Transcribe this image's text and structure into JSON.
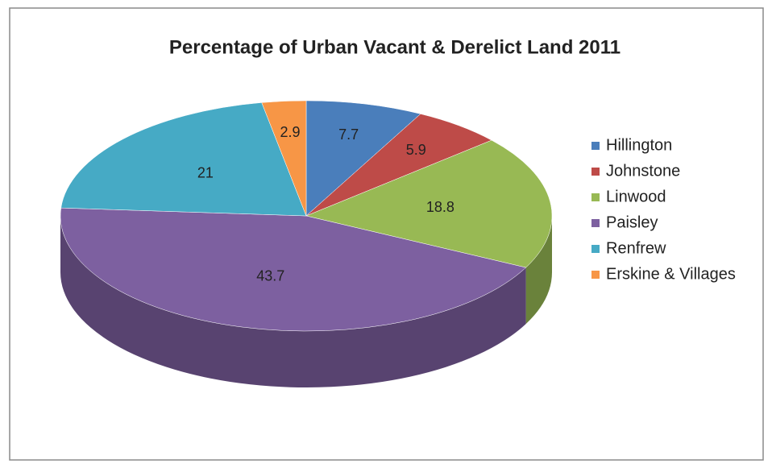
{
  "chart_data": {
    "type": "pie",
    "title": "Percentage of Urban Vacant & Derelict Land 2011",
    "categories": [
      "Hillington",
      "Johnstone",
      "Linwood",
      "Paisley",
      "Renfrew",
      "Erskine & Villages"
    ],
    "values": [
      7.7,
      5.9,
      18.8,
      43.7,
      21,
      2.9
    ],
    "colors": [
      "#4a7ebb",
      "#be4b48",
      "#98b954",
      "#7d60a0",
      "#46aac5",
      "#f79646"
    ],
    "legend": "right"
  }
}
